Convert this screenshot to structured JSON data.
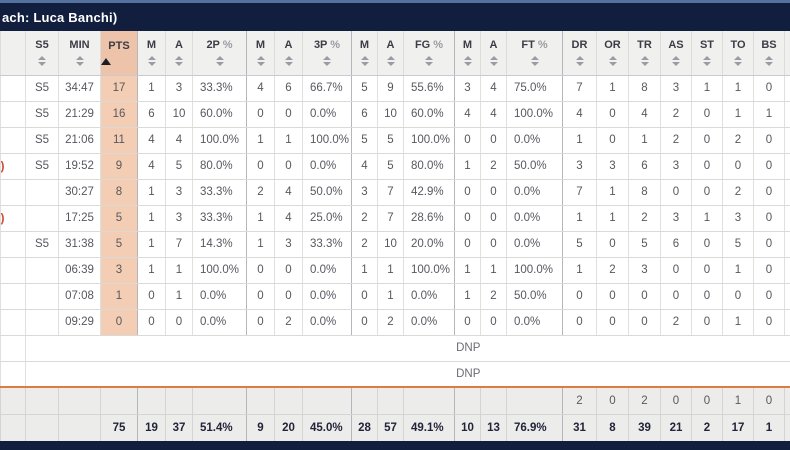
{
  "title_bar": {
    "text_fragment": "ach: Luca Banchi)"
  },
  "colors": {
    "navy_bar": "#111e3e",
    "navy_bar_top_line": "#54719f",
    "header_bg": "#f0f0ee",
    "pts_header_bg": "#edc3a9",
    "pts_cell_bg": "#f3ceb5",
    "orange_separator": "#dc7b42",
    "footer_row_bg": "#ececea",
    "sorted_arrow": "#1d1d26",
    "red_fragment": "#cf4a33"
  },
  "table": {
    "fragment_char": ")",
    "dnp_label": "DNP",
    "columns": [
      {
        "id": "name",
        "label": "",
        "sortable": false
      },
      {
        "id": "s5",
        "label": "S5",
        "sortable": true
      },
      {
        "id": "min",
        "label": "MIN",
        "sortable": true
      },
      {
        "id": "pts",
        "label": "PTS",
        "sortable": true,
        "sorted": true
      },
      {
        "id": "m2p",
        "label": "M",
        "sortable": true
      },
      {
        "id": "a2p",
        "label": "A",
        "sortable": true
      },
      {
        "id": "p2pct",
        "label": "2P",
        "pct": " %",
        "sortable": true
      },
      {
        "id": "m3p",
        "label": "M",
        "sortable": true
      },
      {
        "id": "a3p",
        "label": "A",
        "sortable": true
      },
      {
        "id": "p3pct",
        "label": "3P",
        "pct": " %",
        "sortable": true
      },
      {
        "id": "mfg",
        "label": "M",
        "sortable": true
      },
      {
        "id": "afg",
        "label": "A",
        "sortable": true
      },
      {
        "id": "fgpct",
        "label": "FG",
        "pct": " %",
        "sortable": true
      },
      {
        "id": "mft",
        "label": "M",
        "sortable": true
      },
      {
        "id": "aft",
        "label": "A",
        "sortable": true
      },
      {
        "id": "ftpct",
        "label": "FT",
        "pct": " %",
        "sortable": true
      },
      {
        "id": "dr",
        "label": "DR",
        "sortable": true
      },
      {
        "id": "or",
        "label": "OR",
        "sortable": true
      },
      {
        "id": "tr",
        "label": "TR",
        "sortable": true
      },
      {
        "id": "as",
        "label": "AS",
        "sortable": true
      },
      {
        "id": "st",
        "label": "ST",
        "sortable": true
      },
      {
        "id": "to",
        "label": "TO",
        "sortable": true
      },
      {
        "id": "bs",
        "label": "BS",
        "sortable": true
      },
      {
        "id": "next",
        "label": "",
        "sortable": false
      }
    ],
    "rows": [
      {
        "left_fragment": false,
        "cells": [
          "",
          "S5",
          "34:47",
          "17",
          "1",
          "3",
          "33.3%",
          "4",
          "6",
          "66.7%",
          "5",
          "9",
          "55.6%",
          "3",
          "4",
          "75.0%",
          "7",
          "1",
          "8",
          "3",
          "1",
          "1",
          "0",
          ""
        ]
      },
      {
        "left_fragment": false,
        "cells": [
          "",
          "S5",
          "21:29",
          "16",
          "6",
          "10",
          "60.0%",
          "0",
          "0",
          "0.0%",
          "6",
          "10",
          "60.0%",
          "4",
          "4",
          "100.0%",
          "4",
          "0",
          "4",
          "2",
          "0",
          "1",
          "1",
          ""
        ]
      },
      {
        "left_fragment": false,
        "cells": [
          "",
          "S5",
          "21:06",
          "11",
          "4",
          "4",
          "100.0%",
          "1",
          "1",
          "100.0%",
          "5",
          "5",
          "100.0%",
          "0",
          "0",
          "0.0%",
          "1",
          "0",
          "1",
          "2",
          "0",
          "2",
          "0",
          ""
        ]
      },
      {
        "left_fragment": true,
        "cells": [
          "",
          "S5",
          "19:52",
          "9",
          "4",
          "5",
          "80.0%",
          "0",
          "0",
          "0.0%",
          "4",
          "5",
          "80.0%",
          "1",
          "2",
          "50.0%",
          "3",
          "3",
          "6",
          "3",
          "0",
          "0",
          "0",
          ""
        ]
      },
      {
        "left_fragment": false,
        "cells": [
          "",
          "",
          "30:27",
          "8",
          "1",
          "3",
          "33.3%",
          "2",
          "4",
          "50.0%",
          "3",
          "7",
          "42.9%",
          "0",
          "0",
          "0.0%",
          "7",
          "1",
          "8",
          "0",
          "0",
          "2",
          "0",
          ""
        ]
      },
      {
        "left_fragment": true,
        "cells": [
          "",
          "",
          "17:25",
          "5",
          "1",
          "3",
          "33.3%",
          "1",
          "4",
          "25.0%",
          "2",
          "7",
          "28.6%",
          "0",
          "0",
          "0.0%",
          "1",
          "1",
          "2",
          "3",
          "1",
          "3",
          "0",
          ""
        ]
      },
      {
        "left_fragment": false,
        "cells": [
          "",
          "S5",
          "31:38",
          "5",
          "1",
          "7",
          "14.3%",
          "1",
          "3",
          "33.3%",
          "2",
          "10",
          "20.0%",
          "0",
          "0",
          "0.0%",
          "5",
          "0",
          "5",
          "6",
          "0",
          "5",
          "0",
          ""
        ]
      },
      {
        "left_fragment": false,
        "cells": [
          "",
          "",
          "06:39",
          "3",
          "1",
          "1",
          "100.0%",
          "0",
          "0",
          "0.0%",
          "1",
          "1",
          "100.0%",
          "1",
          "1",
          "100.0%",
          "1",
          "2",
          "3",
          "0",
          "0",
          "1",
          "0",
          ""
        ]
      },
      {
        "left_fragment": false,
        "cells": [
          "",
          "",
          "07:08",
          "1",
          "0",
          "1",
          "0.0%",
          "0",
          "0",
          "0.0%",
          "0",
          "1",
          "0.0%",
          "1",
          "2",
          "50.0%",
          "0",
          "0",
          "0",
          "0",
          "0",
          "0",
          "0",
          ""
        ]
      },
      {
        "left_fragment": false,
        "cells": [
          "",
          "",
          "09:29",
          "0",
          "0",
          "0",
          "0.0%",
          "0",
          "2",
          "0.0%",
          "0",
          "2",
          "0.0%",
          "0",
          "0",
          "0.0%",
          "0",
          "0",
          "0",
          "2",
          "0",
          "1",
          "0",
          ""
        ]
      }
    ],
    "dnp_rows": [
      "DNP",
      "DNP"
    ],
    "team_row": [
      "",
      "",
      "",
      "",
      "",
      "",
      "",
      "",
      "",
      "",
      "",
      "",
      "",
      "",
      "",
      "",
      "2",
      "0",
      "2",
      "0",
      "0",
      "1",
      "0",
      ""
    ],
    "totals_row": [
      "",
      "",
      "",
      "75",
      "19",
      "37",
      "51.4%",
      "9",
      "20",
      "45.0%",
      "28",
      "57",
      "49.1%",
      "10",
      "13",
      "76.9%",
      "31",
      "8",
      "39",
      "21",
      "2",
      "17",
      "1",
      ""
    ]
  }
}
